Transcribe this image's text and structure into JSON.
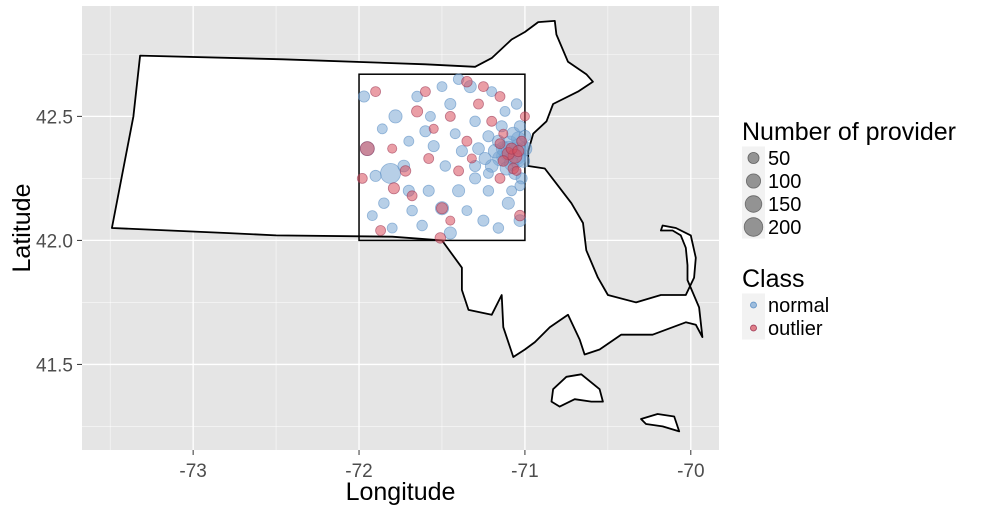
{
  "chart_data": {
    "type": "scatter",
    "xlabel": "Longitude",
    "ylabel": "Latitude",
    "xlim": [
      -73.67,
      -69.83
    ],
    "ylim": [
      41.155,
      42.945
    ],
    "x_ticks": [
      -73,
      -72,
      -71,
      -70
    ],
    "x_tick_labels": [
      "-73",
      "-72",
      "-71",
      "-70"
    ],
    "y_ticks": [
      41.5,
      42.0,
      42.5
    ],
    "y_tick_labels": [
      "41.5",
      "42.0",
      "42.5"
    ],
    "grid": true,
    "legend_position": "right",
    "colors": {
      "panel": "#e5e5e5",
      "grid": "#ffffff",
      "normal": "#7ba7d4",
      "outlier": "#d94f5c",
      "outline": "#000000"
    },
    "size_legend": {
      "title": "Number of provider",
      "labels": [
        "50",
        "100",
        "150",
        "200"
      ],
      "values": [
        50,
        100,
        150,
        200
      ]
    },
    "class_legend": {
      "title": "Class",
      "labels": [
        "normal",
        "outlier"
      ]
    },
    "region_box": {
      "lon": [
        -72.0,
        -71.0
      ],
      "lat": [
        42.0,
        42.67
      ]
    },
    "state_outline": [
      [
        -73.32,
        42.745
      ],
      [
        -72.46,
        42.73
      ],
      [
        -71.6,
        42.71
      ],
      [
        -71.3,
        42.7
      ],
      [
        -71.2,
        42.735
      ],
      [
        -71.08,
        42.81
      ],
      [
        -71.0,
        42.84
      ],
      [
        -70.92,
        42.88
      ],
      [
        -70.82,
        42.885
      ],
      [
        -70.81,
        42.83
      ],
      [
        -70.74,
        42.72
      ],
      [
        -70.63,
        42.67
      ],
      [
        -70.59,
        42.64
      ],
      [
        -70.68,
        42.6
      ],
      [
        -70.83,
        42.55
      ],
      [
        -70.87,
        42.48
      ],
      [
        -70.95,
        42.43
      ],
      [
        -70.98,
        42.36
      ],
      [
        -70.98,
        42.3
      ],
      [
        -70.88,
        42.29
      ],
      [
        -70.8,
        42.22
      ],
      [
        -70.72,
        42.15
      ],
      [
        -70.65,
        42.07
      ],
      [
        -70.63,
        41.96
      ],
      [
        -70.56,
        41.85
      ],
      [
        -70.5,
        41.78
      ],
      [
        -70.33,
        41.75
      ],
      [
        -70.18,
        41.78
      ],
      [
        -70.03,
        41.78
      ],
      [
        -69.98,
        41.85
      ],
      [
        -69.97,
        41.93
      ],
      [
        -70.0,
        42.02
      ],
      [
        -70.09,
        42.05
      ],
      [
        -70.17,
        42.06
      ],
      [
        -70.18,
        42.04
      ],
      [
        -70.11,
        42.04
      ],
      [
        -70.06,
        42.02
      ],
      [
        -70.03,
        41.97
      ],
      [
        -70.02,
        41.9
      ],
      [
        -70.02,
        41.84
      ],
      [
        -69.95,
        41.73
      ],
      [
        -69.93,
        41.61
      ],
      [
        -69.97,
        41.66
      ],
      [
        -70.03,
        41.67
      ],
      [
        -70.23,
        41.62
      ],
      [
        -70.42,
        41.62
      ],
      [
        -70.55,
        41.56
      ],
      [
        -70.64,
        41.54
      ],
      [
        -70.67,
        41.6
      ],
      [
        -70.74,
        41.7
      ],
      [
        -70.85,
        41.65
      ],
      [
        -70.94,
        41.59
      ],
      [
        -71.0,
        41.56
      ],
      [
        -71.07,
        41.53
      ],
      [
        -71.13,
        41.65
      ],
      [
        -71.14,
        41.78
      ],
      [
        -71.2,
        41.7
      ],
      [
        -71.34,
        41.72
      ],
      [
        -71.38,
        41.8
      ],
      [
        -71.38,
        41.89
      ],
      [
        -71.5,
        42.0
      ],
      [
        -71.8,
        42.015
      ],
      [
        -72.5,
        42.02
      ],
      [
        -72.8,
        42.03
      ],
      [
        -73.49,
        42.05
      ],
      [
        -73.36,
        42.5
      ],
      [
        -73.32,
        42.745
      ]
    ],
    "islands": [
      [
        [
          -70.83,
          41.4
        ],
        [
          -70.75,
          41.45
        ],
        [
          -70.66,
          41.46
        ],
        [
          -70.55,
          41.4
        ],
        [
          -70.53,
          41.35
        ],
        [
          -70.6,
          41.35
        ],
        [
          -70.7,
          41.36
        ],
        [
          -70.79,
          41.33
        ],
        [
          -70.84,
          41.35
        ],
        [
          -70.83,
          41.4
        ]
      ],
      [
        [
          -70.3,
          41.28
        ],
        [
          -70.2,
          41.3
        ],
        [
          -70.1,
          41.29
        ],
        [
          -70.07,
          41.23
        ],
        [
          -70.17,
          41.25
        ],
        [
          -70.27,
          41.26
        ],
        [
          -70.3,
          41.28
        ]
      ]
    ],
    "series": [
      {
        "name": "normal",
        "points": [
          [
            -71.06,
            42.35,
            220
          ],
          [
            -71.1,
            42.36,
            150
          ],
          [
            -71.05,
            42.33,
            120
          ],
          [
            -71.12,
            42.34,
            100
          ],
          [
            -71.03,
            42.38,
            90
          ],
          [
            -71.09,
            42.39,
            80
          ],
          [
            -71.15,
            42.33,
            70
          ],
          [
            -71.08,
            42.31,
            65
          ],
          [
            -71.0,
            42.37,
            60
          ],
          [
            -71.13,
            42.37,
            60
          ],
          [
            -71.04,
            42.41,
            55
          ],
          [
            -71.18,
            42.36,
            55
          ],
          [
            -71.07,
            42.43,
            50
          ],
          [
            -71.11,
            42.29,
            50
          ],
          [
            -71.2,
            42.3,
            45
          ],
          [
            -71.01,
            42.32,
            45
          ],
          [
            -71.16,
            42.4,
            40
          ],
          [
            -71.24,
            42.33,
            40
          ],
          [
            -71.06,
            42.27,
            40
          ],
          [
            -71.0,
            42.42,
            35
          ],
          [
            -71.28,
            42.37,
            35
          ],
          [
            -71.22,
            42.42,
            30
          ],
          [
            -71.03,
            42.46,
            30
          ],
          [
            -71.14,
            42.46,
            30
          ],
          [
            -71.3,
            42.3,
            30
          ],
          [
            -71.81,
            42.27,
            160
          ],
          [
            -71.95,
            42.37,
            60
          ],
          [
            -71.78,
            42.5,
            50
          ],
          [
            -71.6,
            42.44,
            30
          ],
          [
            -71.45,
            42.55,
            30
          ],
          [
            -71.33,
            42.62,
            40
          ],
          [
            -71.4,
            42.65,
            25
          ],
          [
            -71.55,
            42.38,
            30
          ],
          [
            -71.7,
            42.2,
            30
          ],
          [
            -71.85,
            42.15,
            25
          ],
          [
            -71.5,
            42.13,
            50
          ],
          [
            -71.4,
            42.2,
            40
          ],
          [
            -71.3,
            42.25,
            30
          ],
          [
            -71.22,
            42.2,
            25
          ],
          [
            -71.1,
            42.15,
            40
          ],
          [
            -71.03,
            42.08,
            35
          ],
          [
            -71.02,
            42.25,
            30
          ],
          [
            -71.16,
            42.05,
            25
          ],
          [
            -71.25,
            42.08,
            30
          ],
          [
            -71.45,
            42.03,
            40
          ],
          [
            -71.62,
            42.06,
            25
          ],
          [
            -71.73,
            42.3,
            35
          ],
          [
            -71.9,
            42.26,
            30
          ],
          [
            -71.97,
            42.58,
            30
          ],
          [
            -71.65,
            42.58,
            25
          ],
          [
            -71.5,
            42.62,
            20
          ],
          [
            -71.3,
            42.48,
            25
          ],
          [
            -71.38,
            42.36,
            30
          ],
          [
            -71.48,
            42.3,
            25
          ],
          [
            -71.58,
            42.2,
            30
          ],
          [
            -71.68,
            42.12,
            25
          ],
          [
            -71.8,
            42.05,
            20
          ],
          [
            -71.92,
            42.1,
            20
          ],
          [
            -71.57,
            42.5,
            20
          ],
          [
            -71.05,
            42.55,
            25
          ],
          [
            -71.12,
            42.52,
            20
          ],
          [
            -71.2,
            42.6,
            20
          ],
          [
            -71.35,
            42.12,
            20
          ],
          [
            -71.08,
            42.2,
            20
          ],
          [
            -71.22,
            42.27,
            20
          ],
          [
            -71.03,
            42.22,
            20
          ],
          [
            -71.42,
            42.43,
            20
          ],
          [
            -71.7,
            42.4,
            20
          ],
          [
            -71.86,
            42.45,
            20
          ]
        ]
      },
      {
        "name": "outlier",
        "points": [
          [
            -71.06,
            42.34,
            60
          ],
          [
            -71.1,
            42.35,
            40
          ],
          [
            -71.08,
            42.37,
            30
          ],
          [
            -71.04,
            42.36,
            30
          ],
          [
            -71.13,
            42.32,
            25
          ],
          [
            -71.07,
            42.29,
            25
          ],
          [
            -71.15,
            42.39,
            20
          ],
          [
            -71.02,
            42.4,
            20
          ],
          [
            -71.95,
            42.37,
            60
          ],
          [
            -71.65,
            42.52,
            30
          ],
          [
            -71.72,
            42.28,
            25
          ],
          [
            -71.79,
            42.21,
            30
          ],
          [
            -71.87,
            42.04,
            20
          ],
          [
            -71.5,
            42.13,
            30
          ],
          [
            -71.51,
            42.01,
            25
          ],
          [
            -71.35,
            42.4,
            20
          ],
          [
            -71.45,
            42.5,
            20
          ],
          [
            -71.58,
            42.33,
            20
          ],
          [
            -71.6,
            42.6,
            20
          ],
          [
            -71.28,
            42.55,
            20
          ],
          [
            -71.2,
            42.48,
            20
          ],
          [
            -71.25,
            42.62,
            20
          ],
          [
            -71.03,
            42.1,
            25
          ],
          [
            -71.15,
            42.25,
            20
          ],
          [
            -71.4,
            42.28,
            20
          ],
          [
            -71.68,
            42.18,
            20
          ],
          [
            -71.0,
            42.5,
            15
          ],
          [
            -71.9,
            42.6,
            20
          ],
          [
            -71.45,
            42.08,
            15
          ],
          [
            -71.98,
            42.25,
            20
          ],
          [
            -71.35,
            42.64,
            25
          ],
          [
            -71.15,
            42.58,
            20
          ],
          [
            -71.32,
            42.33,
            15
          ],
          [
            -71.55,
            42.45,
            15
          ],
          [
            -71.05,
            42.28,
            15
          ],
          [
            -71.13,
            42.43,
            15
          ],
          [
            -71.8,
            42.37,
            15
          ]
        ]
      }
    ]
  }
}
